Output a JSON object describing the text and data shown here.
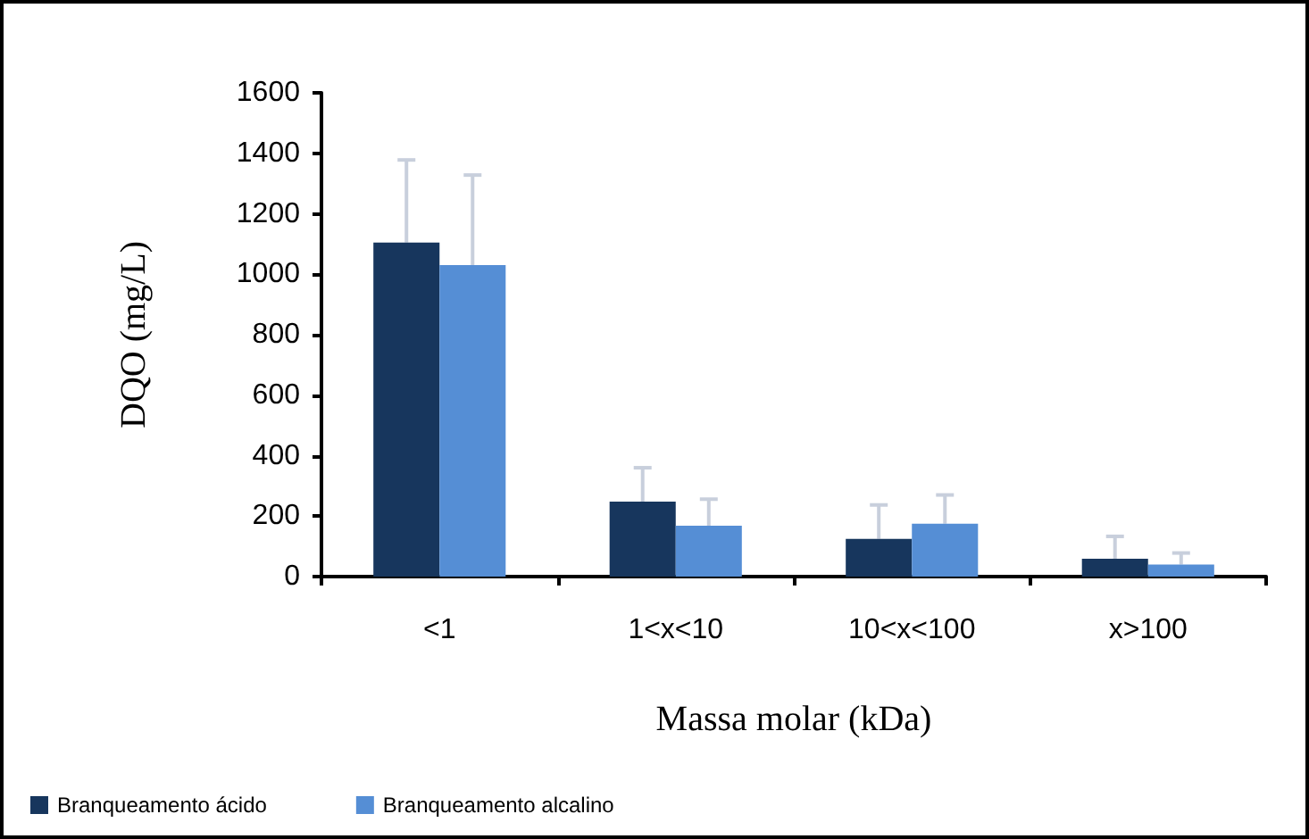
{
  "chart_data": {
    "type": "bar",
    "xlabel": "Massa molar (kDa)",
    "ylabel": "DQO (mg/L)",
    "categories": [
      "<1",
      "1<x<10",
      "10<x<100",
      "x>100"
    ],
    "series": [
      {
        "name": "Branqueamento ácido",
        "color": "#17365d",
        "values": [
          1105,
          248,
          125,
          59
        ],
        "errors": [
          [
            1105,
            1378
          ],
          [
            248,
            360
          ],
          [
            125,
            237
          ],
          [
            59,
            133
          ]
        ]
      },
      {
        "name": "Branqueamento alcalino",
        "color": "#558ed5",
        "values": [
          1030,
          168,
          175,
          40
        ],
        "errors": [
          [
            1030,
            1328
          ],
          [
            168,
            256
          ],
          [
            175,
            270
          ],
          [
            40,
            78
          ]
        ]
      }
    ],
    "ylim": [
      0,
      1600
    ],
    "yticks": [
      0,
      200,
      400,
      600,
      800,
      1000,
      1200,
      1400,
      1600
    ],
    "grid": false,
    "legend": "bottom"
  }
}
